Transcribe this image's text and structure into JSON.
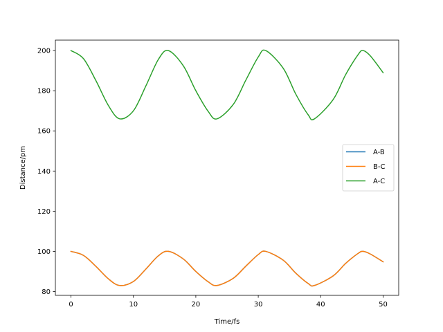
{
  "chart_data": {
    "type": "line",
    "title": "",
    "xlabel": "Time/fs",
    "ylabel": "Distance/pm",
    "xlim": [
      -2.5,
      52.5
    ],
    "ylim": [
      78.1,
      205.2
    ],
    "xticks": [
      0,
      10,
      20,
      30,
      40,
      50
    ],
    "yticks": [
      80,
      100,
      120,
      140,
      160,
      180,
      200
    ],
    "grid": false,
    "legend_position": "center-right",
    "series": [
      {
        "name": "A-B",
        "color": "#1f77b4",
        "x": [
          0,
          2,
          4,
          6,
          7.8,
          10,
          12,
          14,
          15.6,
          18,
          20,
          22,
          23.4,
          26,
          28,
          30,
          31.2,
          34,
          36,
          38,
          39,
          42,
          44,
          46,
          46.8,
          48,
          50
        ],
        "y": [
          100,
          98.0,
          92.5,
          86.3,
          83.0,
          85.0,
          91.2,
          97.8,
          100,
          96.2,
          90.0,
          84.8,
          83.0,
          86.6,
          92.6,
          98.4,
          100,
          95.6,
          89.2,
          84.0,
          83.0,
          87.8,
          94.0,
          99.0,
          100,
          98.6,
          94.8
        ]
      },
      {
        "name": "B-C",
        "color": "#ff7f0e",
        "x": [
          0,
          2,
          4,
          6,
          7.8,
          10,
          12,
          14,
          15.6,
          18,
          20,
          22,
          23.4,
          26,
          28,
          30,
          31.2,
          34,
          36,
          38,
          39,
          42,
          44,
          46,
          46.8,
          48,
          50
        ],
        "y": [
          100,
          98.0,
          92.5,
          86.3,
          83.0,
          85.0,
          91.2,
          97.8,
          100,
          96.2,
          90.0,
          84.8,
          83.0,
          86.6,
          92.6,
          98.4,
          100,
          95.6,
          89.2,
          84.0,
          83.0,
          87.8,
          94.0,
          99.0,
          100,
          98.6,
          94.8
        ]
      },
      {
        "name": "A-C",
        "color": "#2ca02c",
        "x": [
          0,
          2,
          4,
          6,
          7.8,
          10,
          12,
          14,
          15.6,
          18,
          20,
          22,
          23.4,
          26,
          28,
          30,
          31.2,
          34,
          36,
          38,
          39,
          42,
          44,
          46,
          46.8,
          48,
          50
        ],
        "y": [
          200,
          196.0,
          185.0,
          172.6,
          166.0,
          170.0,
          182.4,
          195.6,
          200,
          192.4,
          180.0,
          169.6,
          166.0,
          173.2,
          185.2,
          196.8,
          200,
          191.2,
          178.4,
          168.0,
          166.0,
          175.6,
          188.0,
          198.0,
          200,
          197.2,
          189.0
        ]
      }
    ]
  }
}
